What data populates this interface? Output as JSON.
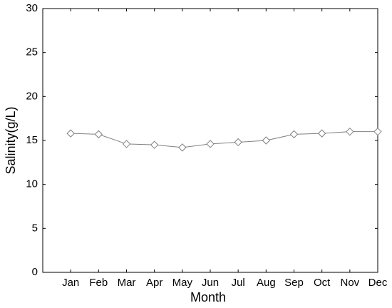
{
  "chart_data": {
    "type": "line",
    "x_label": "Month",
    "y_label": "Salinity(g/L)",
    "categories": [
      "Jan",
      "Feb",
      "Mar",
      "Apr",
      "May",
      "Jun",
      "Jul",
      "Aug",
      "Sep",
      "Oct",
      "Nov",
      "Dec"
    ],
    "series": [
      {
        "color": "#808080",
        "values": [
          15.8,
          15.7,
          14.6,
          14.5,
          14.2,
          14.6,
          14.8,
          15.0,
          15.7,
          15.8,
          16.0,
          16.0
        ]
      }
    ],
    "ylim": [
      0,
      30
    ],
    "yticks": [
      0,
      5,
      10,
      15,
      20,
      25,
      30
    ]
  }
}
